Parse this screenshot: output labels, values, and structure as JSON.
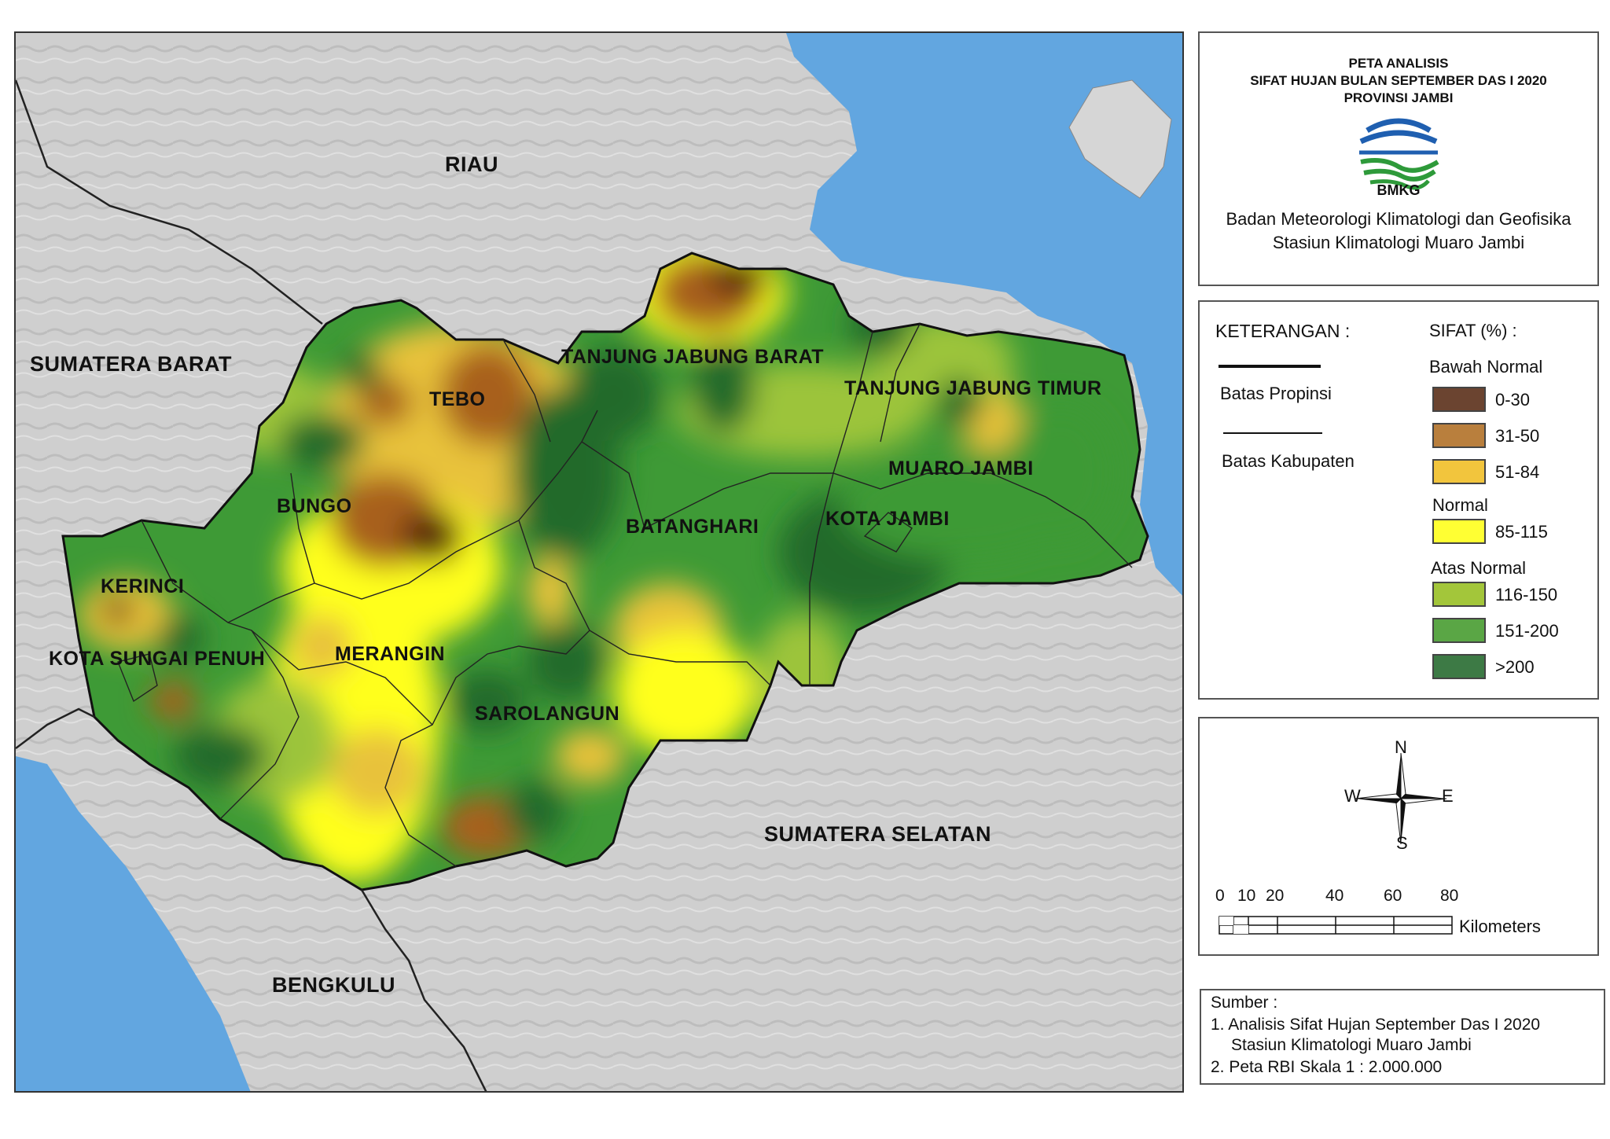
{
  "title": {
    "line1": "PETA ANALISIS",
    "line2": "SIFAT HUJAN BULAN SEPTEMBER DAS I 2020",
    "line3": "PROVINSI JAMBI",
    "logo_text": "BMKG",
    "org1": "Badan Meteorologi Klimatologi dan Geofisika",
    "org2": "Stasiun Klimatologi Muaro Jambi"
  },
  "map": {
    "neighbors": [
      "RIAU",
      "SUMATERA BARAT",
      "SUMATERA SELATAN",
      "BENGKULU"
    ],
    "regencies": [
      "TEBO",
      "BUNGO",
      "KERINCI",
      "KOTA SUNGAI PENUH",
      "MERANGIN",
      "SAROLANGUN",
      "BATANGHARI",
      "TANJUNG JABUNG BARAT",
      "TANJUNG JABUNG TIMUR",
      "MUARO JAMBI",
      "KOTA JAMBI"
    ]
  },
  "legend": {
    "heading": "KETERANGAN :",
    "boundary_province": "Batas Propinsi",
    "boundary_regency": "Batas Kabupaten",
    "sifat_heading": "SIFAT (%) :",
    "groups": {
      "below": "Bawah Normal",
      "normal": "Normal",
      "above": "Atas Normal"
    },
    "classes": [
      {
        "label": "0-30",
        "color": "#6b4430"
      },
      {
        "label": "31-50",
        "color": "#b97f3d"
      },
      {
        "label": "51-84",
        "color": "#f2c53d"
      },
      {
        "label": "85-115",
        "color": "#ffff33"
      },
      {
        "label": "116-150",
        "color": "#a3c63a"
      },
      {
        "label": "151-200",
        "color": "#5aa645"
      },
      {
        "label": ">200",
        "color": "#3d7a45"
      }
    ]
  },
  "compass": {
    "n": "N",
    "s": "S",
    "e": "E",
    "w": "W"
  },
  "scale": {
    "ticks": [
      "0",
      "10",
      "20",
      "40",
      "60",
      "80"
    ],
    "unit": "Kilometers"
  },
  "source": {
    "heading": "Sumber :",
    "item1": "1. Analisis Sifat Hujan September Das I 2020",
    "item1b": "Stasiun Klimatologi Muaro Jambi",
    "item2": "2. Peta RBI Skala 1 : 2.000.000"
  },
  "colors": {
    "sea": "#62a6e0",
    "land": "#cfcfcf",
    "below_dark": "#5a2a10",
    "below_mid": "#a8601a",
    "below_light": "#e8c23a",
    "normal": "#ffff1a",
    "above_light": "#9cc43a",
    "above_mid": "#3e9a36",
    "above_dark": "#236b2a"
  }
}
